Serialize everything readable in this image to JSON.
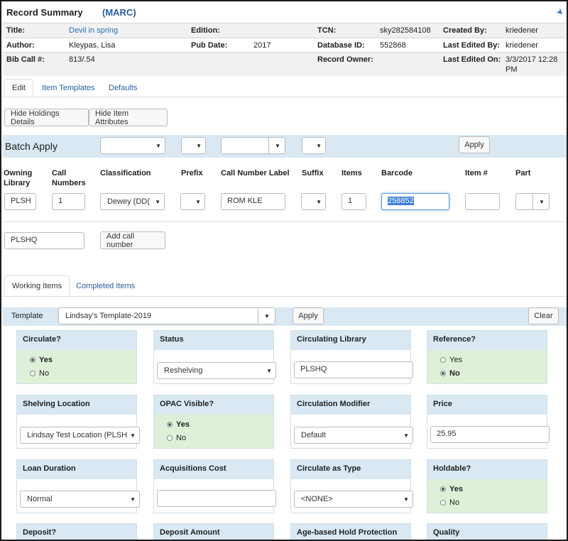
{
  "record_summary": {
    "title": "Record Summary",
    "marc_link": "(MARC)",
    "rows": [
      {
        "c1_label": "Title:",
        "c1_value": "Devil in spring",
        "c2_label": "Edition:",
        "c2_value": "",
        "c3_label": "TCN:",
        "c3_value": "sky282584108",
        "c4_label": "Created By:",
        "c4_value": "kriedener"
      },
      {
        "c1_label": "Author:",
        "c1_value": "Kleypas, Lisa",
        "c2_label": "Pub Date:",
        "c2_value": "2017",
        "c3_label": "Database ID:",
        "c3_value": "552868",
        "c4_label": "Last Edited By:",
        "c4_value": "kriedener"
      },
      {
        "c1_label": "Bib Call #:",
        "c1_value": "813/.54",
        "c2_label": "",
        "c2_value": "",
        "c3_label": "Record Owner:",
        "c3_value": "",
        "c4_label": "Last Edited On:",
        "c4_value": "3/3/2017 12:28",
        "c4_value2": "PM"
      }
    ]
  },
  "top_tabs": [
    "Edit",
    "Item Templates",
    "Defaults"
  ],
  "toolbar": {
    "hide_holdings": "Hide Holdings Details",
    "hide_attributes": "Hide Item Attributes"
  },
  "batch": {
    "label": "Batch Apply",
    "apply": "Apply"
  },
  "columns": {
    "owning_library": "Owning\nLibrary",
    "owning_library_l1": "Owning",
    "owning_library_l2": "Library",
    "call_numbers_l1": "Call",
    "call_numbers_l2": "Numbers",
    "classification": "Classification",
    "prefix": "Prefix",
    "call_number_label": "Call Number Label",
    "suffix": "Suffix",
    "items": "Items",
    "barcode": "Barcode",
    "item_num": "Item #",
    "part": "Part"
  },
  "row": {
    "owning_library": "PLSH",
    "call_numbers": "1",
    "classification": "Dewey (DD(",
    "call_number_label": "ROM KLE",
    "items": "1",
    "barcode": "258852"
  },
  "holding": {
    "library": "PLSHQ",
    "add_call_number": "Add call number"
  },
  "item_tabs": [
    "Working Items",
    "Completed Items"
  ],
  "template_bar": {
    "label": "Template",
    "selected": "Lindsay's Template-2019",
    "apply": "Apply",
    "clear": "Clear"
  },
  "cards": {
    "circulate": {
      "title": "Circulate?",
      "yes": "Yes",
      "no": "No"
    },
    "status": {
      "title": "Status",
      "value": "Reshelving"
    },
    "circ_library": {
      "title": "Circulating Library",
      "value": "PLSHQ"
    },
    "reference": {
      "title": "Reference?",
      "yes": "Yes",
      "no": "No"
    },
    "shelving": {
      "title": "Shelving Location",
      "value": "Lindsay Test Location (PLSH"
    },
    "opac": {
      "title": "OPAC Visible?",
      "yes": "Yes",
      "no": "No"
    },
    "circ_modifier": {
      "title": "Circulation Modifier",
      "value": "Default"
    },
    "price": {
      "title": "Price",
      "value": "25.95"
    },
    "loan": {
      "title": "Loan Duration",
      "value": "Normal"
    },
    "acq_cost": {
      "title": "Acquisitions Cost",
      "value": ""
    },
    "circ_type": {
      "title": "Circulate as Type",
      "value": "<NONE>"
    },
    "holdable": {
      "title": "Holdable?",
      "yes": "Yes",
      "no": "No"
    },
    "deposit": {
      "title": "Deposit?"
    },
    "deposit_amount": {
      "title": "Deposit Amount"
    },
    "age_hold": {
      "title": "Age-based Hold Protection"
    },
    "quality": {
      "title": "Quality"
    }
  },
  "icons": {
    "pin": "pin-icon",
    "caret": "caret-down-icon"
  }
}
